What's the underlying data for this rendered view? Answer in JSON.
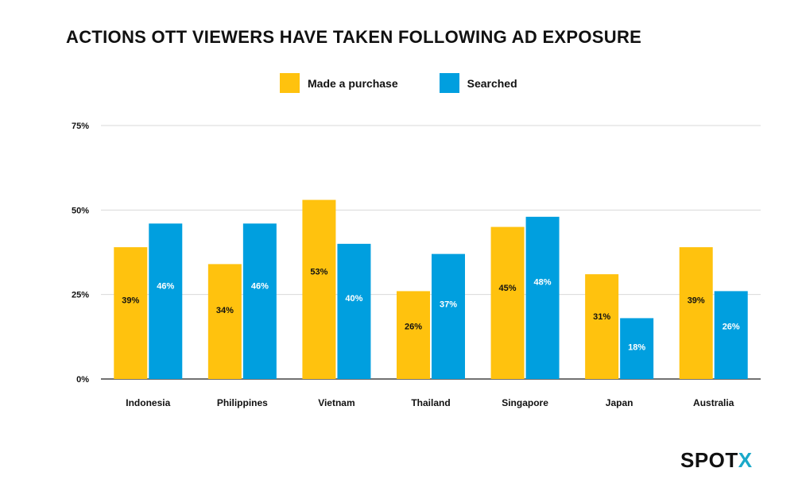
{
  "chart_data": {
    "type": "bar",
    "title": "ACTIONS OTT VIEWERS HAVE TAKEN FOLLOWING AD EXPOSURE",
    "xlabel": "",
    "ylabel": "",
    "categories": [
      "Indonesia",
      "Philippines",
      "Vietnam",
      "Thailand",
      "Singapore",
      "Japan",
      "Australia"
    ],
    "series": [
      {
        "name": "Made a purchase",
        "color": "#ffc20e",
        "values": [
          39,
          34,
          53,
          26,
          45,
          31,
          39
        ]
      },
      {
        "name": "Searched",
        "color": "#009fdf",
        "values": [
          46,
          46,
          40,
          37,
          48,
          18,
          26
        ]
      }
    ],
    "data_labels": [
      [
        "39%",
        "34%",
        "53%",
        "26%",
        "45%",
        "31%",
        "39%"
      ],
      [
        "46%",
        "46%",
        "40%",
        "37%",
        "48%",
        "18%",
        "26%"
      ]
    ],
    "ylim": [
      0,
      75
    ],
    "yticks": [
      0,
      25,
      50,
      75
    ],
    "ytick_labels": [
      "0%",
      "25%",
      "50%",
      "75%"
    ],
    "grid": true,
    "legend_position": "top-center"
  },
  "brand": {
    "main": "SPOT",
    "accent": "X",
    "accent_color": "#1aa9c9"
  }
}
